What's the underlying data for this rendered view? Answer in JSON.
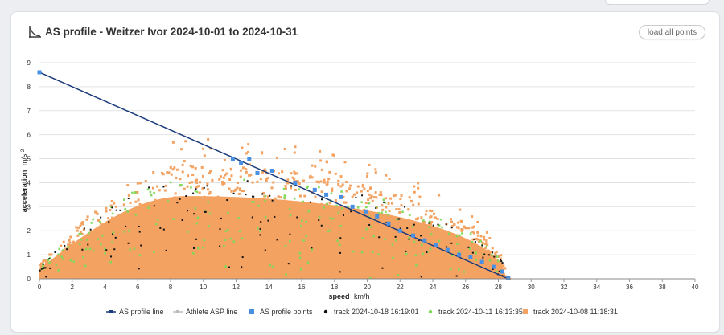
{
  "header": {
    "title": "AS profile - Weitzer Ivor 2024-10-01 to 2024-10-31",
    "load_button": "load all points"
  },
  "chart_data": {
    "type": "scatter",
    "title": "AS profile - Weitzer Ivor 2024-10-01 to 2024-10-31",
    "xlabel": "speed km/h",
    "ylabel": "acceleration m/s²",
    "xlabel_main": "speed",
    "xlabel_unit": "km/h",
    "ylabel_main": "acceleration",
    "ylabel_unit": "m/s",
    "ylabel_sup": "2",
    "xlim": [
      0,
      40
    ],
    "ylim": [
      0,
      9
    ],
    "xticks": [
      0,
      2,
      4,
      6,
      8,
      10,
      12,
      14,
      16,
      18,
      20,
      22,
      24,
      26,
      28,
      30,
      32,
      34,
      36,
      38,
      40
    ],
    "yticks": [
      0,
      1,
      2,
      3,
      4,
      5,
      6,
      7,
      8,
      9
    ],
    "grid": "horizontal",
    "legend_position": "bottom",
    "colors": {
      "profile_line": "#1a3a7a",
      "asp_line": "#bbbbbb",
      "profile_points": "#4a90e2",
      "track_black": "#111111",
      "track_green": "#7ed957",
      "track_orange": "#f4a261"
    },
    "series": [
      {
        "name": "AS profile line",
        "kind": "line",
        "color": "#1a3a7a",
        "x": [
          0,
          28.6
        ],
        "y": [
          8.6,
          0
        ]
      },
      {
        "name": "Athlete ASP line",
        "kind": "line",
        "color": "#bbbbbb",
        "x": [],
        "y": []
      },
      {
        "name": "AS profile points",
        "kind": "points",
        "color": "#4a90e2",
        "x": [
          0,
          11.8,
          12.3,
          12.8,
          13.3,
          14.2,
          15.6,
          16.8,
          17.5,
          18.4,
          19.1,
          19.9,
          20.6,
          21.3,
          22.0,
          22.8,
          23.5,
          24.2,
          24.9,
          25.6,
          26.3,
          27.0,
          27.7,
          28.2,
          28.6
        ],
        "y": [
          8.6,
          5.0,
          4.8,
          5.0,
          4.4,
          4.5,
          4.0,
          3.7,
          3.5,
          3.4,
          3.0,
          2.8,
          2.6,
          2.3,
          2.0,
          1.8,
          1.6,
          1.4,
          1.2,
          1.0,
          0.9,
          0.7,
          0.5,
          0.3,
          0.05
        ]
      },
      {
        "name": "track 2024-10-18 16:19:01",
        "kind": "cloud",
        "color": "#111111"
      },
      {
        "name": "track 2024-10-11 16:13:35",
        "kind": "cloud",
        "color": "#7ed957"
      },
      {
        "name": "track 2024-10-08 11:18:31",
        "kind": "cloud",
        "color": "#f4a261"
      }
    ]
  }
}
